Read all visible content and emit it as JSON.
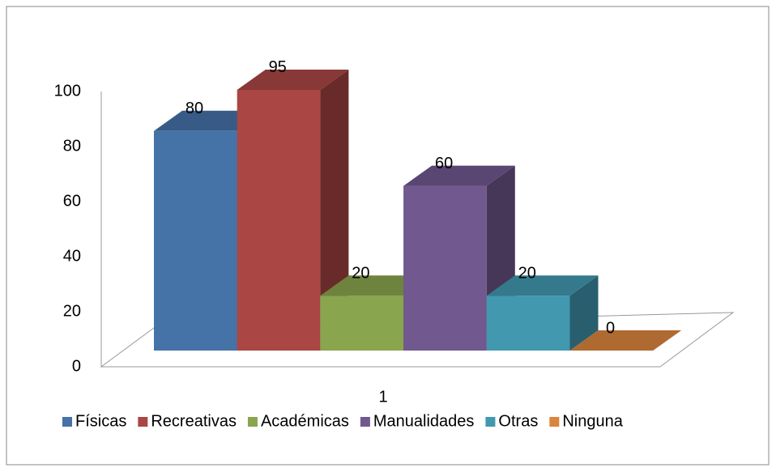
{
  "chart_data": {
    "type": "bar3d",
    "categories": [
      "1"
    ],
    "series": [
      {
        "name": "Físicas",
        "color": "#4572a7",
        "values": [
          80
        ]
      },
      {
        "name": "Recreativas",
        "color": "#aa4643",
        "values": [
          95
        ]
      },
      {
        "name": "Académicas",
        "color": "#89a54e",
        "values": [
          20
        ]
      },
      {
        "name": "Manualidades",
        "color": "#71588f",
        "values": [
          60
        ]
      },
      {
        "name": "Otras",
        "color": "#4198af",
        "values": [
          20
        ]
      },
      {
        "name": "Ninguna",
        "color": "#db843d",
        "values": [
          0
        ]
      }
    ],
    "ylim": [
      0,
      100
    ],
    "yticks": [
      0,
      20,
      40,
      60,
      80,
      100
    ],
    "legend": "bottom"
  }
}
